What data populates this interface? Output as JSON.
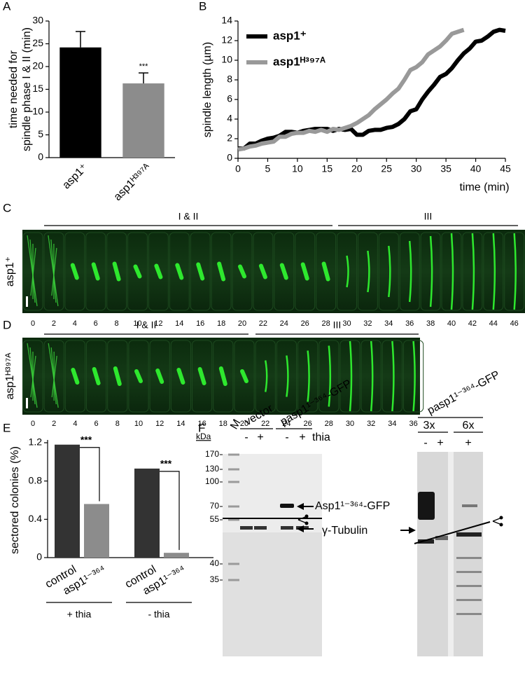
{
  "chart_data": [
    {
      "panel": "A",
      "type": "bar",
      "ylabel": [
        "time needed for",
        "spindle phase I & II (min)"
      ],
      "categories": [
        "asp1⁺",
        "asp1ᴴ³⁹⁷ᴬ"
      ],
      "values": [
        24.2,
        16.3
      ],
      "errors": [
        3.5,
        2.3
      ],
      "colors": [
        "#000000",
        "#8c8c8c"
      ],
      "annotation": "***",
      "ylim": [
        0,
        30
      ],
      "yticks": [
        0,
        5,
        10,
        15,
        20,
        25,
        30
      ]
    },
    {
      "panel": "B",
      "type": "line",
      "ylabel": "spindle length (µm)",
      "xlabel": "time (min)",
      "x": [
        0,
        1,
        2,
        3,
        4,
        5,
        6,
        7,
        8,
        9,
        10,
        11,
        12,
        13,
        14,
        15,
        16,
        17,
        18,
        19,
        20,
        21,
        22,
        23,
        24,
        25,
        26,
        27,
        28,
        29,
        30,
        31,
        32,
        33,
        34,
        35,
        36,
        37,
        38,
        39,
        40,
        41,
        42,
        43,
        44,
        45
      ],
      "series": [
        {
          "name": "asp1⁺",
          "color": "#000000",
          "values": [
            1,
            1,
            1.5,
            1.5,
            1.8,
            2,
            2.1,
            2.3,
            2.7,
            2.7,
            2.6,
            2.8,
            2.9,
            3,
            3,
            3,
            2.8,
            3,
            2.9,
            3,
            2.4,
            2.4,
            2.8,
            2.9,
            2.9,
            3.1,
            3.2,
            3.5,
            4,
            4.8,
            5,
            6,
            6.8,
            7.5,
            8.3,
            8.6,
            9.2,
            10,
            10.7,
            11.2,
            11.9,
            12,
            12.4,
            12.9,
            13.1,
            13
          ]
        },
        {
          "name": "asp1ᴴ³⁹⁷ᴬ",
          "color": "#999999",
          "values": [
            0.9,
            1,
            1.2,
            1.3,
            1.5,
            1.6,
            1.7,
            2.2,
            2.2,
            2.5,
            2.6,
            2.6,
            2.8,
            2.7,
            2.9,
            2.7,
            3,
            2.9,
            3.1,
            3.3,
            3.6,
            4,
            4.4,
            5,
            5.5,
            6,
            6.6,
            7.1,
            8,
            9,
            9.3,
            9.8,
            10.6,
            11,
            11.4,
            12,
            12.7,
            12.9,
            13.1,
            null,
            null,
            null,
            null,
            null,
            null,
            null
          ]
        }
      ],
      "xlim": [
        0,
        45
      ],
      "xticks": [
        0,
        5,
        10,
        15,
        20,
        25,
        30,
        35,
        40,
        45
      ],
      "ylim": [
        0,
        14
      ],
      "yticks": [
        0,
        2,
        4,
        6,
        8,
        10,
        12,
        14
      ],
      "legend": "upper-left"
    },
    {
      "panel": "E",
      "type": "bar",
      "ylabel": "sectored colonies (%)",
      "categories": [
        "control",
        "asp1¹⁻³⁶⁴",
        "control",
        "asp1¹⁻³⁶⁴"
      ],
      "values": [
        1.18,
        0.56,
        0.93,
        0.05
      ],
      "colors": [
        "#333333",
        "#8c8c8c",
        "#333333",
        "#8c8c8c"
      ],
      "groups": [
        {
          "label": "+ thia",
          "annotation": "***"
        },
        {
          "label": "- thia",
          "annotation": "***"
        }
      ],
      "ylim": [
        0,
        1.2
      ],
      "yticks": [
        0,
        0.4,
        0.8,
        1.2
      ]
    }
  ],
  "microscopy": [
    {
      "panel": "C",
      "strain": "asp1⁺",
      "phases": [
        "I & II",
        "III"
      ],
      "times": [
        0,
        2,
        4,
        6,
        8,
        10,
        12,
        14,
        16,
        18,
        20,
        22,
        24,
        26,
        28,
        30,
        32,
        34,
        36,
        38,
        40,
        42,
        44,
        46
      ]
    },
    {
      "panel": "D",
      "strain": "asp1ᴴ³⁹⁷ᴬ",
      "phases": [
        "I & II",
        "III"
      ],
      "times": [
        0,
        2,
        4,
        6,
        8,
        10,
        12,
        14,
        16,
        18,
        20,
        22,
        24,
        26,
        28,
        30,
        32,
        34,
        36
      ]
    }
  ],
  "blot": {
    "panel": "F",
    "left": {
      "unit": "kDa",
      "marker_lane": "M",
      "groups": [
        "vector",
        "pasp1¹⁻³⁶⁴-GFP"
      ],
      "lanes": [
        "-",
        "+",
        "-",
        "+"
      ],
      "treatment": "thia",
      "markers": [
        170,
        130,
        100,
        70,
        55,
        40,
        35
      ]
    },
    "bands": [
      "Asp1¹⁻³⁶⁴-GFP",
      "γ-Tubulin"
    ],
    "right": {
      "construct": "pasp1¹⁻³⁶⁴-GFP",
      "groups": [
        "3x",
        "6x"
      ],
      "lanes": [
        "-",
        "+",
        "+"
      ]
    }
  }
}
